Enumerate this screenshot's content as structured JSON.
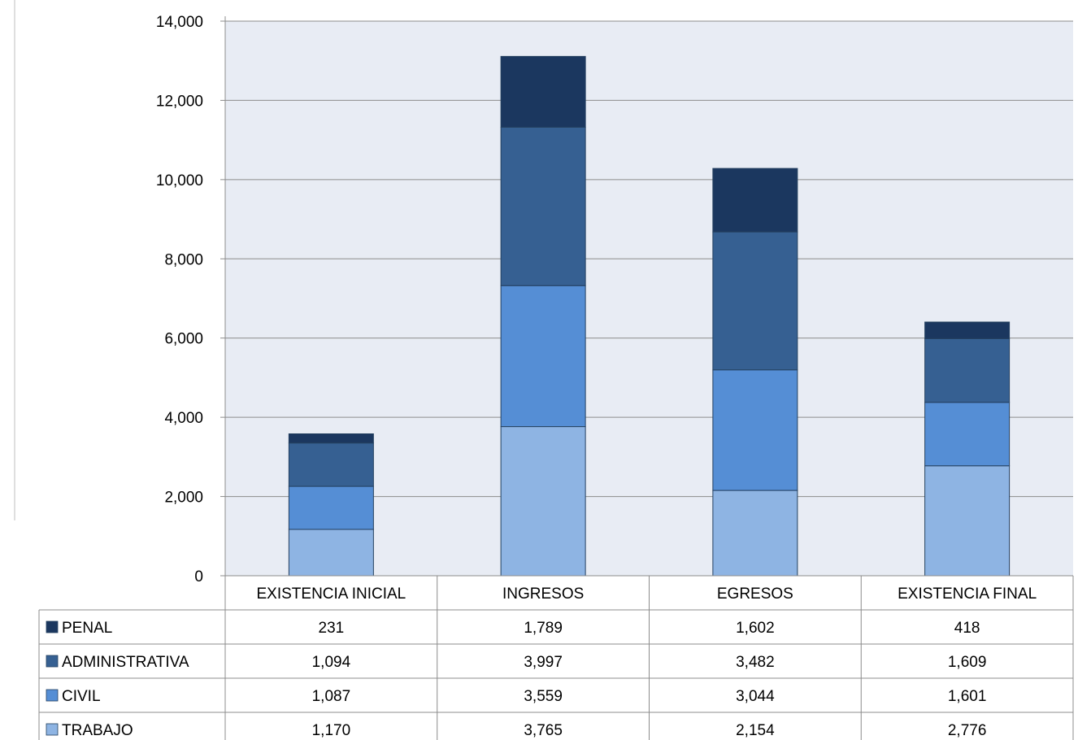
{
  "chart_data": {
    "type": "bar",
    "stacked": true,
    "categories": [
      "EXISTENCIA INICIAL",
      "INGRESOS",
      "EGRESOS",
      "EXISTENCIA FINAL"
    ],
    "series": [
      {
        "name": "PENAL",
        "values": [
          231,
          1789,
          1602,
          418
        ],
        "labels": [
          "231",
          "1,789",
          "1,602",
          "418"
        ],
        "color": "#1b375f"
      },
      {
        "name": "ADMINISTRATIVA",
        "values": [
          1094,
          3997,
          3482,
          1609
        ],
        "labels": [
          "1,094",
          "3,997",
          "3,482",
          "1,609"
        ],
        "color": "#366092"
      },
      {
        "name": "CIVIL",
        "values": [
          1087,
          3559,
          3044,
          1601
        ],
        "labels": [
          "1,087",
          "3,559",
          "3,044",
          "1,601"
        ],
        "color": "#558ed5"
      },
      {
        "name": "TRABAJO",
        "values": [
          1170,
          3765,
          2154,
          2776
        ],
        "labels": [
          "1,170",
          "3,765",
          "2,154",
          "2,776"
        ],
        "color": "#8eb4e3"
      }
    ],
    "stack_order": [
      "TRABAJO",
      "CIVIL",
      "ADMINISTRATIVA",
      "PENAL"
    ],
    "yticks": [
      "0",
      "2,000",
      "4,000",
      "6,000",
      "8,000",
      "10,000",
      "12,000",
      "14,000"
    ],
    "ylim": [
      0,
      14000
    ],
    "grid": true,
    "legend": "data-table",
    "plot_background": "#e8ecf4"
  }
}
